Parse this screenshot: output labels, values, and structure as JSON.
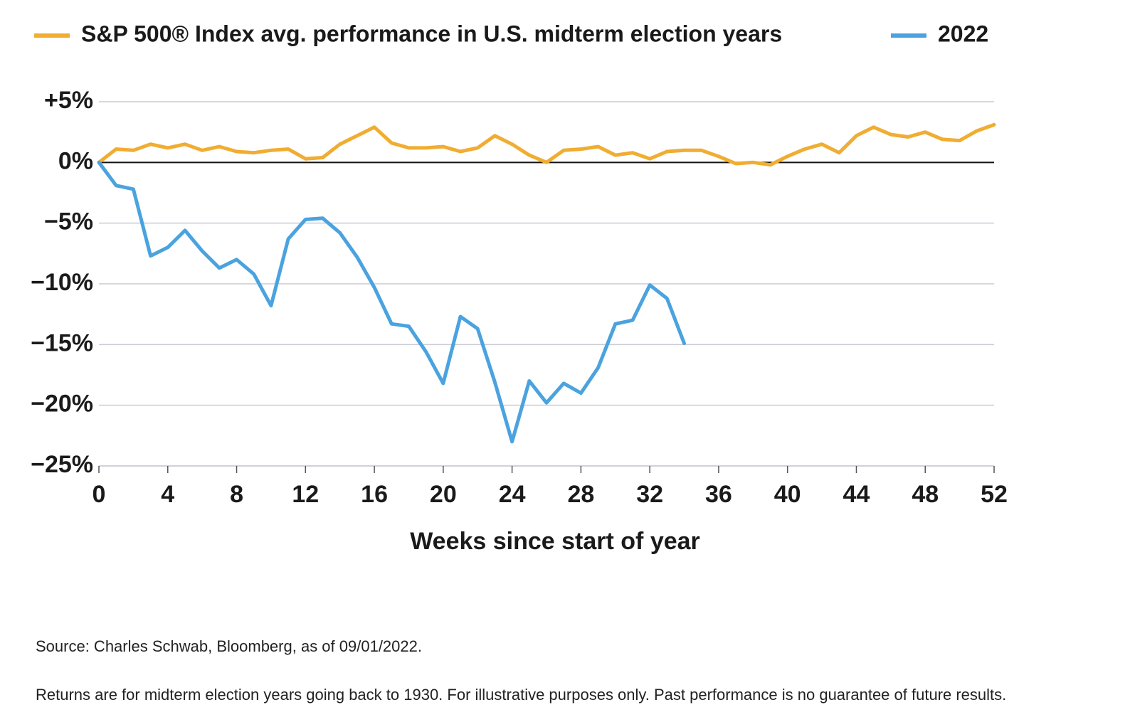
{
  "chart_data": {
    "type": "line",
    "x": [
      0,
      1,
      2,
      3,
      4,
      5,
      6,
      7,
      8,
      9,
      10,
      11,
      12,
      13,
      14,
      15,
      16,
      17,
      18,
      19,
      20,
      21,
      22,
      23,
      24,
      25,
      26,
      27,
      28,
      29,
      30,
      31,
      32,
      33,
      34,
      35,
      36,
      37,
      38,
      39,
      40,
      41,
      42,
      43,
      44,
      45,
      46,
      47,
      48,
      49,
      50,
      51,
      52
    ],
    "series": [
      {
        "name": "S&P 500® Index avg. performance in U.S. midterm election years",
        "color": "#f0ad32",
        "values": [
          0,
          1.1,
          1.0,
          1.5,
          1.2,
          1.5,
          1.0,
          1.3,
          0.9,
          0.8,
          1.0,
          1.1,
          0.3,
          0.4,
          1.5,
          2.2,
          2.9,
          1.6,
          1.2,
          1.2,
          1.3,
          0.9,
          1.2,
          2.2,
          1.5,
          0.6,
          0.0,
          1.0,
          1.1,
          1.3,
          0.6,
          0.8,
          0.3,
          0.9,
          1.0,
          1.0,
          0.5,
          -0.1,
          0.0,
          -0.2,
          0.5,
          1.1,
          1.5,
          0.8,
          2.2,
          2.9,
          2.3,
          2.1,
          2.5,
          1.9,
          1.8,
          2.6,
          3.1
        ]
      },
      {
        "name": "2022",
        "color": "#4aa3df",
        "values": [
          0,
          -1.9,
          -2.2,
          -7.7,
          -7.0,
          -5.6,
          -7.3,
          -8.7,
          -8.0,
          -9.2,
          -11.8,
          -6.3,
          -4.7,
          -4.6,
          -5.8,
          -7.8,
          -10.3,
          -13.3,
          -13.5,
          -15.6,
          -18.2,
          -12.7,
          -13.7,
          -18.1,
          -23.0,
          -18.0,
          -19.8,
          -18.2,
          -19.0,
          -16.9,
          -13.3,
          -13.0,
          -10.1,
          -11.2,
          -14.9,
          null,
          null,
          null,
          null,
          null,
          null,
          null,
          null,
          null,
          null,
          null,
          null,
          null,
          null,
          null,
          null,
          null,
          null
        ]
      }
    ],
    "xlabel": "Weeks since start of year",
    "xlim": [
      0,
      52
    ],
    "xticks": [
      0,
      4,
      8,
      12,
      16,
      20,
      24,
      28,
      32,
      36,
      40,
      44,
      48,
      52
    ],
    "ylim": [
      -25,
      5
    ],
    "yticks": [
      {
        "value": 5,
        "label": "+5%"
      },
      {
        "value": 0,
        "label": "0%"
      },
      {
        "value": -5,
        "label": "−5%"
      },
      {
        "value": -10,
        "label": "−10%"
      },
      {
        "value": -15,
        "label": "−15%"
      },
      {
        "value": -20,
        "label": "−20%"
      },
      {
        "value": -25,
        "label": "−25%"
      }
    ],
    "grid": true,
    "legend": "top",
    "notes": [
      "Source: Charles Schwab, Bloomberg, as of 09/01/2022.",
      "Returns are for midterm election years going back to 1930. For illustrative purposes only. Past performance is no guarantee of future results."
    ]
  }
}
